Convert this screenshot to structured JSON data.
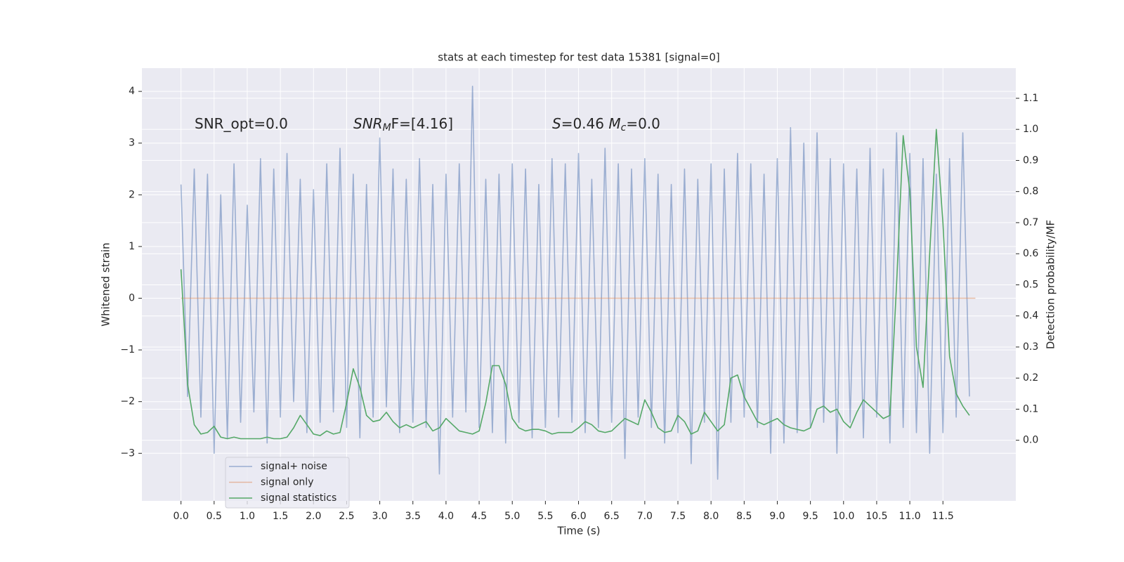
{
  "chart_data": {
    "type": "line",
    "title": "stats at each timestep for test data 15381 [signal=0]",
    "xlabel": "Time (s)",
    "ylabel": "Whitened strain",
    "y2label": "Detection probability/MF",
    "annotations": [
      [
        {
          "text": "SNR_opt=0.0",
          "style": "normal"
        }
      ],
      [
        {
          "text": "SNR",
          "style": "italic"
        },
        {
          "text": "M",
          "style": "sub"
        },
        {
          "text": "F=[4.16]",
          "style": "normal"
        }
      ],
      [
        {
          "text": "S",
          "style": "italic"
        },
        {
          "text": "=0.46   ",
          "style": "normal"
        },
        {
          "text": "M",
          "style": "italic"
        },
        {
          "text": "c",
          "style": "sub"
        },
        {
          "text": "=0.0",
          "style": "normal"
        }
      ]
    ],
    "xlim": [
      -0.59,
      12.6
    ],
    "ylim": [
      -3.92,
      4.45
    ],
    "y2lim": [
      -0.195,
      1.197
    ],
    "xticks": [
      {
        "value": 0,
        "label": "0.0"
      },
      0.5,
      {
        "value": 1,
        "label": "1.0"
      },
      1.5,
      {
        "value": 2,
        "label": "2.0"
      },
      2.5,
      {
        "value": 3,
        "label": "3.0"
      },
      3.5,
      {
        "value": 4,
        "label": "4.0"
      },
      4.5,
      {
        "value": 5,
        "label": "5.0"
      },
      5.5,
      {
        "value": 6,
        "label": "6.0"
      },
      6.5,
      {
        "value": 7,
        "label": "7.0"
      },
      7.5,
      {
        "value": 8,
        "label": "8.0"
      },
      8.5,
      {
        "value": 9,
        "label": "9.0"
      },
      9.5,
      {
        "value": 10,
        "label": "10.0"
      },
      10.5,
      {
        "value": 11,
        "label": "11.0"
      },
      11.5
    ],
    "yticks": [
      {
        "value": -3,
        "label": "−3"
      },
      {
        "value": -2,
        "label": "−2"
      },
      {
        "value": -1,
        "label": "−1"
      },
      0,
      1,
      2,
      3,
      4
    ],
    "y2ticks": [
      {
        "value": 0,
        "label": "0.0"
      },
      0.1,
      0.2,
      0.3,
      0.4,
      0.5,
      0.6,
      0.7,
      0.8,
      0.9,
      {
        "value": 1,
        "label": "1.0"
      },
      1.1
    ],
    "grid": true,
    "legend": "lower left",
    "series": [
      {
        "name": "signal+ noise",
        "color": "#4c72b0",
        "axis": "y",
        "x": [
          0,
          0.1,
          0.2,
          0.3,
          0.4,
          0.5,
          0.6,
          0.7,
          0.8,
          0.9,
          1,
          1.1,
          1.2,
          1.3,
          1.4,
          1.5,
          1.6,
          1.7,
          1.8,
          1.9,
          2,
          2.1,
          2.2,
          2.3,
          2.4,
          2.5,
          2.6,
          2.7,
          2.8,
          2.9,
          3,
          3.1,
          3.2,
          3.3,
          3.4,
          3.5,
          3.6,
          3.7,
          3.8,
          3.9,
          4,
          4.1,
          4.2,
          4.3,
          4.4,
          4.5,
          4.6,
          4.7,
          4.8,
          4.9,
          5,
          5.1,
          5.2,
          5.3,
          5.4,
          5.5,
          5.6,
          5.7,
          5.8,
          5.9,
          6,
          6.1,
          6.2,
          6.3,
          6.4,
          6.5,
          6.6,
          6.7,
          6.8,
          6.9,
          7,
          7.1,
          7.2,
          7.3,
          7.4,
          7.5,
          7.6,
          7.7,
          7.8,
          7.9,
          8,
          8.1,
          8.2,
          8.3,
          8.4,
          8.5,
          8.6,
          8.7,
          8.8,
          8.9,
          9,
          9.1,
          9.2,
          9.3,
          9.4,
          9.5,
          9.6,
          9.7,
          9.8,
          9.9,
          10,
          10.1,
          10.2,
          10.3,
          10.4,
          10.5,
          10.6,
          10.7,
          10.8,
          10.9,
          11,
          11.1,
          11.2,
          11.3,
          11.4,
          11.5,
          11.6,
          11.7,
          11.8,
          11.9
        ],
        "values": [
          2.2,
          -1.9,
          2.5,
          -2.3,
          2.4,
          -3.0,
          2.0,
          -2.7,
          2.6,
          -2.4,
          1.8,
          -2.2,
          2.7,
          -2.8,
          2.5,
          -2.3,
          2.8,
          -2.0,
          2.3,
          -2.6,
          2.1,
          -2.4,
          2.6,
          -2.2,
          2.9,
          -2.5,
          2.4,
          -2.7,
          2.2,
          -2.3,
          3.1,
          -2.1,
          2.5,
          -2.6,
          2.3,
          -2.4,
          2.7,
          -2.5,
          2.2,
          -3.4,
          2.4,
          -2.3,
          2.6,
          -2.2,
          4.1,
          -2.5,
          2.3,
          -2.6,
          2.4,
          -2.8,
          2.6,
          -2.4,
          2.5,
          -2.7,
          2.2,
          -2.5,
          2.7,
          -2.3,
          2.6,
          -2.4,
          2.8,
          -2.6,
          2.3,
          -2.5,
          2.9,
          -2.4,
          2.6,
          -3.1,
          2.5,
          -2.3,
          2.7,
          -2.5,
          2.4,
          -2.8,
          2.2,
          -2.6,
          2.5,
          -3.2,
          2.3,
          -2.4,
          2.6,
          -3.5,
          2.5,
          -2.4,
          2.8,
          -2.3,
          2.6,
          -2.5,
          2.4,
          -3.0,
          2.7,
          -2.8,
          3.3,
          -2.6,
          3.0,
          -2.5,
          3.2,
          -2.4,
          2.7,
          -3.0,
          2.6,
          -2.4,
          2.5,
          -2.7,
          2.9,
          -2.3,
          2.5,
          -2.8,
          3.2,
          -2.5,
          2.8,
          -2.6,
          2.7,
          -3.0,
          2.4,
          -2.6,
          2.7,
          -2.3,
          3.2,
          -1.9
        ]
      },
      {
        "name": "signal only",
        "color": "#dd8452",
        "axis": "y",
        "x": [
          0,
          11.99
        ],
        "values": [
          0,
          0
        ]
      },
      {
        "name": "signal statistics",
        "color": "#55a868",
        "axis": "y2",
        "x": [
          0,
          0.1,
          0.2,
          0.3,
          0.4,
          0.5,
          0.6,
          0.7,
          0.8,
          0.9,
          1,
          1.1,
          1.2,
          1.3,
          1.4,
          1.5,
          1.6,
          1.7,
          1.8,
          1.9,
          2,
          2.1,
          2.2,
          2.3,
          2.4,
          2.5,
          2.6,
          2.7,
          2.8,
          2.9,
          3,
          3.1,
          3.2,
          3.3,
          3.4,
          3.5,
          3.6,
          3.7,
          3.8,
          3.9,
          4,
          4.1,
          4.2,
          4.3,
          4.4,
          4.5,
          4.6,
          4.7,
          4.8,
          4.9,
          5,
          5.1,
          5.2,
          5.3,
          5.4,
          5.5,
          5.6,
          5.7,
          5.8,
          5.9,
          6,
          6.1,
          6.2,
          6.3,
          6.4,
          6.5,
          6.6,
          6.7,
          6.8,
          6.9,
          7,
          7.1,
          7.2,
          7.3,
          7.4,
          7.5,
          7.6,
          7.7,
          7.8,
          7.9,
          8,
          8.1,
          8.2,
          8.3,
          8.4,
          8.5,
          8.6,
          8.7,
          8.8,
          8.9,
          9,
          9.1,
          9.2,
          9.3,
          9.4,
          9.5,
          9.6,
          9.7,
          9.8,
          9.9,
          10,
          10.1,
          10.2,
          10.3,
          10.4,
          10.5,
          10.6,
          10.7,
          10.8,
          10.9,
          11,
          11.1,
          11.2,
          11.3,
          11.4,
          11.5,
          11.6,
          11.7,
          11.8,
          11.9
        ],
        "values": [
          0.55,
          0.18,
          0.05,
          0.02,
          0.025,
          0.045,
          0.01,
          0.005,
          0.01,
          0.005,
          0.005,
          0.005,
          0.005,
          0.01,
          0.005,
          0.005,
          0.01,
          0.04,
          0.08,
          0.05,
          0.02,
          0.015,
          0.03,
          0.02,
          0.025,
          0.12,
          0.23,
          0.17,
          0.08,
          0.06,
          0.065,
          0.09,
          0.06,
          0.04,
          0.05,
          0.04,
          0.05,
          0.06,
          0.03,
          0.04,
          0.07,
          0.05,
          0.03,
          0.025,
          0.02,
          0.03,
          0.12,
          0.24,
          0.24,
          0.18,
          0.07,
          0.04,
          0.03,
          0.035,
          0.035,
          0.03,
          0.02,
          0.025,
          0.025,
          0.025,
          0.04,
          0.06,
          0.05,
          0.03,
          0.025,
          0.03,
          0.05,
          0.07,
          0.06,
          0.05,
          0.13,
          0.09,
          0.04,
          0.025,
          0.03,
          0.08,
          0.06,
          0.02,
          0.03,
          0.09,
          0.06,
          0.03,
          0.05,
          0.2,
          0.21,
          0.14,
          0.1,
          0.06,
          0.05,
          0.06,
          0.07,
          0.05,
          0.04,
          0.035,
          0.03,
          0.04,
          0.1,
          0.11,
          0.09,
          0.1,
          0.06,
          0.04,
          0.09,
          0.13,
          0.11,
          0.09,
          0.07,
          0.08,
          0.5,
          0.98,
          0.8,
          0.3,
          0.17,
          0.6,
          1.0,
          0.7,
          0.27,
          0.15,
          0.11,
          0.08
        ]
      }
    ]
  }
}
